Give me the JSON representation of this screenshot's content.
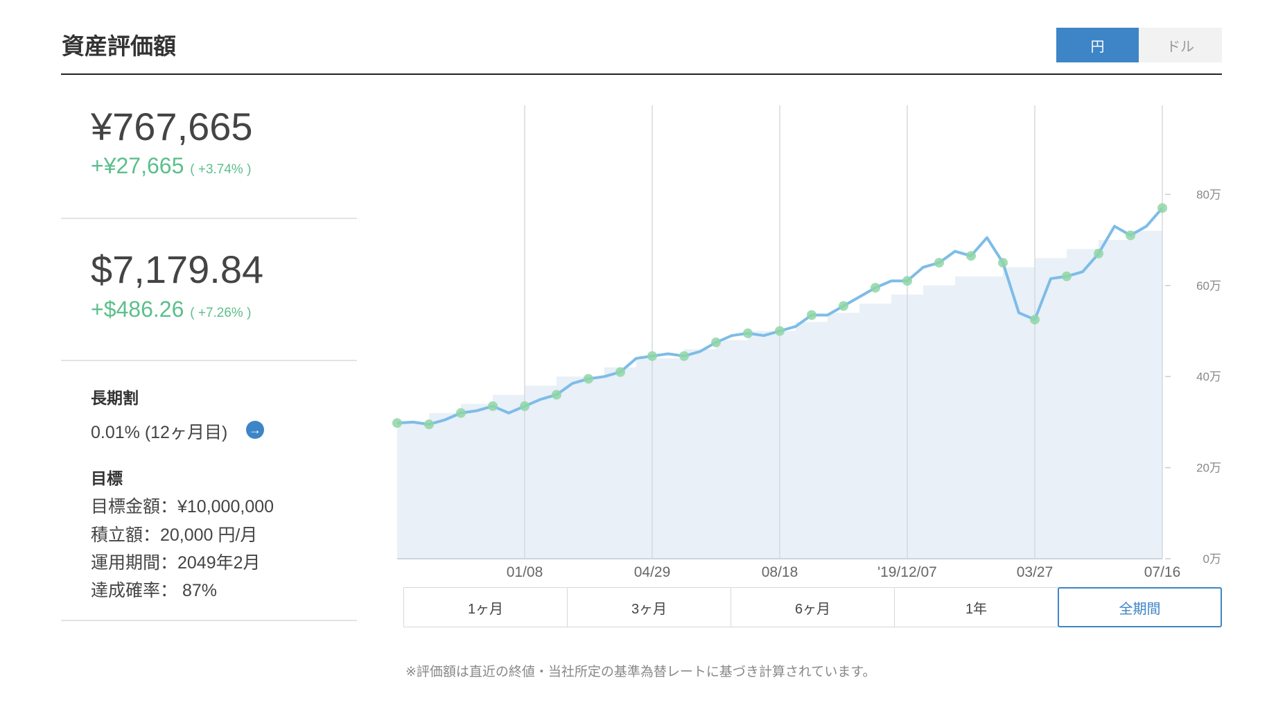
{
  "header": {
    "title": "資産評価額",
    "currency_toggle": [
      "円",
      "ドル"
    ]
  },
  "summary": {
    "jpy": {
      "amount": "¥767,665",
      "change": "+¥27,665",
      "change_pct": "( +3.74% )"
    },
    "usd": {
      "amount": "$7,179.84",
      "change": "+$486.26",
      "change_pct": "( +7.26% )"
    }
  },
  "long_term": {
    "label": "長期割",
    "value": "0.01% (12ヶ月目)"
  },
  "goal": {
    "label": "目標",
    "lines": [
      "目標金額：¥10,000,000",
      "積立額：20,000 円/月",
      "運用期間：2049年2月",
      "達成確率： 87%"
    ]
  },
  "chart_data": {
    "type": "line",
    "categories": [
      null,
      null,
      null,
      null,
      null,
      null,
      null,
      null,
      "01/08",
      null,
      null,
      null,
      null,
      null,
      null,
      null,
      "04/29",
      null,
      null,
      null,
      null,
      null,
      null,
      null,
      "08/18",
      null,
      null,
      null,
      null,
      null,
      null,
      null,
      "'19/12/07",
      null,
      null,
      null,
      null,
      null,
      null,
      null,
      "03/27",
      null,
      null,
      null,
      null,
      null,
      null,
      null,
      "07/16"
    ],
    "series": [
      {
        "type": "area",
        "color": "#e9f0f8",
        "values": [
          300000,
          300000,
          320000,
          320000,
          340000,
          340000,
          360000,
          360000,
          380000,
          380000,
          400000,
          400000,
          400000,
          420000,
          420000,
          440000,
          440000,
          440000,
          460000,
          460000,
          480000,
          480000,
          500000,
          500000,
          500000,
          520000,
          520000,
          540000,
          540000,
          560000,
          560000,
          580000,
          580000,
          600000,
          600000,
          620000,
          620000,
          620000,
          640000,
          640000,
          660000,
          660000,
          680000,
          680000,
          700000,
          700000,
          720000,
          720000,
          740000
        ]
      },
      {
        "type": "line",
        "color": "#7dbce8",
        "marker_color": "#8fd6a6",
        "values": [
          298000,
          300000,
          295000,
          305000,
          320000,
          325000,
          335000,
          320000,
          335000,
          350000,
          360000,
          385000,
          395000,
          400000,
          410000,
          440000,
          445000,
          450000,
          445000,
          455000,
          475000,
          490000,
          495000,
          490000,
          500000,
          510000,
          535000,
          535000,
          555000,
          575000,
          595000,
          610000,
          610000,
          640000,
          650000,
          675000,
          665000,
          705000,
          650000,
          540000,
          525000,
          615000,
          620000,
          630000,
          670000,
          730000,
          710000,
          730000,
          770000
        ]
      }
    ],
    "ylim": [
      0,
      1000000
    ],
    "yticks": [
      {
        "value": 0,
        "label": "0万"
      },
      {
        "value": 200000,
        "label": "20万"
      },
      {
        "value": 400000,
        "label": "40万"
      },
      {
        "value": 600000,
        "label": "60万"
      },
      {
        "value": 800000,
        "label": "80万"
      }
    ]
  },
  "range_buttons": [
    "1ヶ月",
    "3ヶ月",
    "6ヶ月",
    "1年",
    "全期間"
  ],
  "note": "※評価額は直近の終値・当社所定の基準為替レートに基づき計算されています。"
}
